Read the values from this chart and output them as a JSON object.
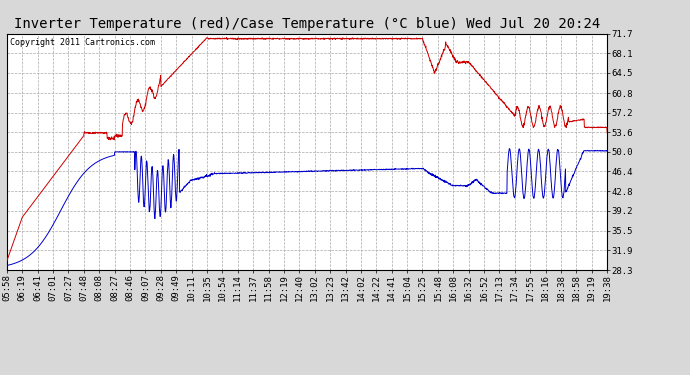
{
  "title": "Inverter Temperature (red)/Case Temperature (°C blue) Wed Jul 20 20:24",
  "copyright": "Copyright 2011 Cartronics.com",
  "yticks": [
    28.3,
    31.9,
    35.5,
    39.2,
    42.8,
    46.4,
    50.0,
    53.6,
    57.2,
    60.8,
    64.5,
    68.1,
    71.7
  ],
  "ylim": [
    28.3,
    71.7
  ],
  "background_color": "#d8d8d8",
  "plot_bg_color": "#ffffff",
  "grid_color": "#aaaaaa",
  "red_color": "#cc0000",
  "blue_color": "#0000cc",
  "title_fontsize": 10,
  "copyright_fontsize": 6,
  "tick_fontsize": 6.5,
  "xtick_labels": [
    "05:58",
    "06:19",
    "06:41",
    "07:01",
    "07:27",
    "07:48",
    "08:08",
    "08:27",
    "08:46",
    "09:07",
    "09:28",
    "09:49",
    "10:11",
    "10:35",
    "10:54",
    "11:14",
    "11:37",
    "11:58",
    "12:19",
    "12:40",
    "13:02",
    "13:23",
    "13:42",
    "14:02",
    "14:22",
    "14:41",
    "15:04",
    "15:25",
    "15:48",
    "16:08",
    "16:32",
    "16:52",
    "17:13",
    "17:34",
    "17:55",
    "18:16",
    "18:38",
    "18:58",
    "19:19",
    "19:38"
  ],
  "n_ticks": 40
}
